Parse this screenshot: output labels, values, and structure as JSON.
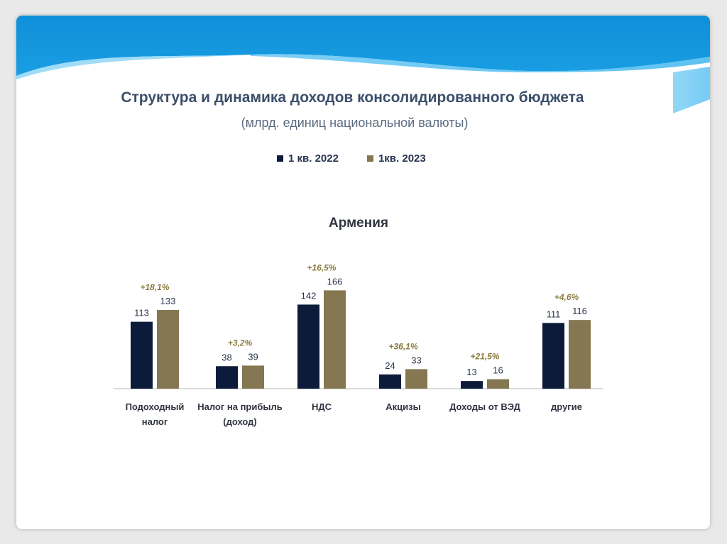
{
  "slide": {
    "title": "Структура и динамика доходов консолидированного бюджета",
    "subtitle": "(млрд. единиц национальной валюты)"
  },
  "chart_data": {
    "type": "bar",
    "title": "Армения",
    "categories": [
      [
        "Подоходный",
        "налог"
      ],
      [
        "Налог на прибыль",
        "(доход)"
      ],
      [
        "НДС"
      ],
      [
        "Акцизы"
      ],
      [
        "Доходы от ВЭД"
      ],
      [
        "другие"
      ]
    ],
    "series": [
      {
        "name": "1 кв. 2022",
        "color": "#0d1b3a",
        "values": [
          113,
          38,
          142,
          24,
          13,
          111
        ]
      },
      {
        "name": "1кв. 2023",
        "color": "#857752",
        "values": [
          133,
          39,
          166,
          33,
          16,
          116
        ]
      }
    ],
    "growth_labels": [
      "+18,1%",
      "+3,2%",
      "+16,5%",
      "+36,1%",
      "+21,5%",
      "+4,6%"
    ],
    "growth_color": "#8a7a3c",
    "ylim": [
      0,
      170
    ],
    "legend_position": "top-center",
    "grid": false
  }
}
